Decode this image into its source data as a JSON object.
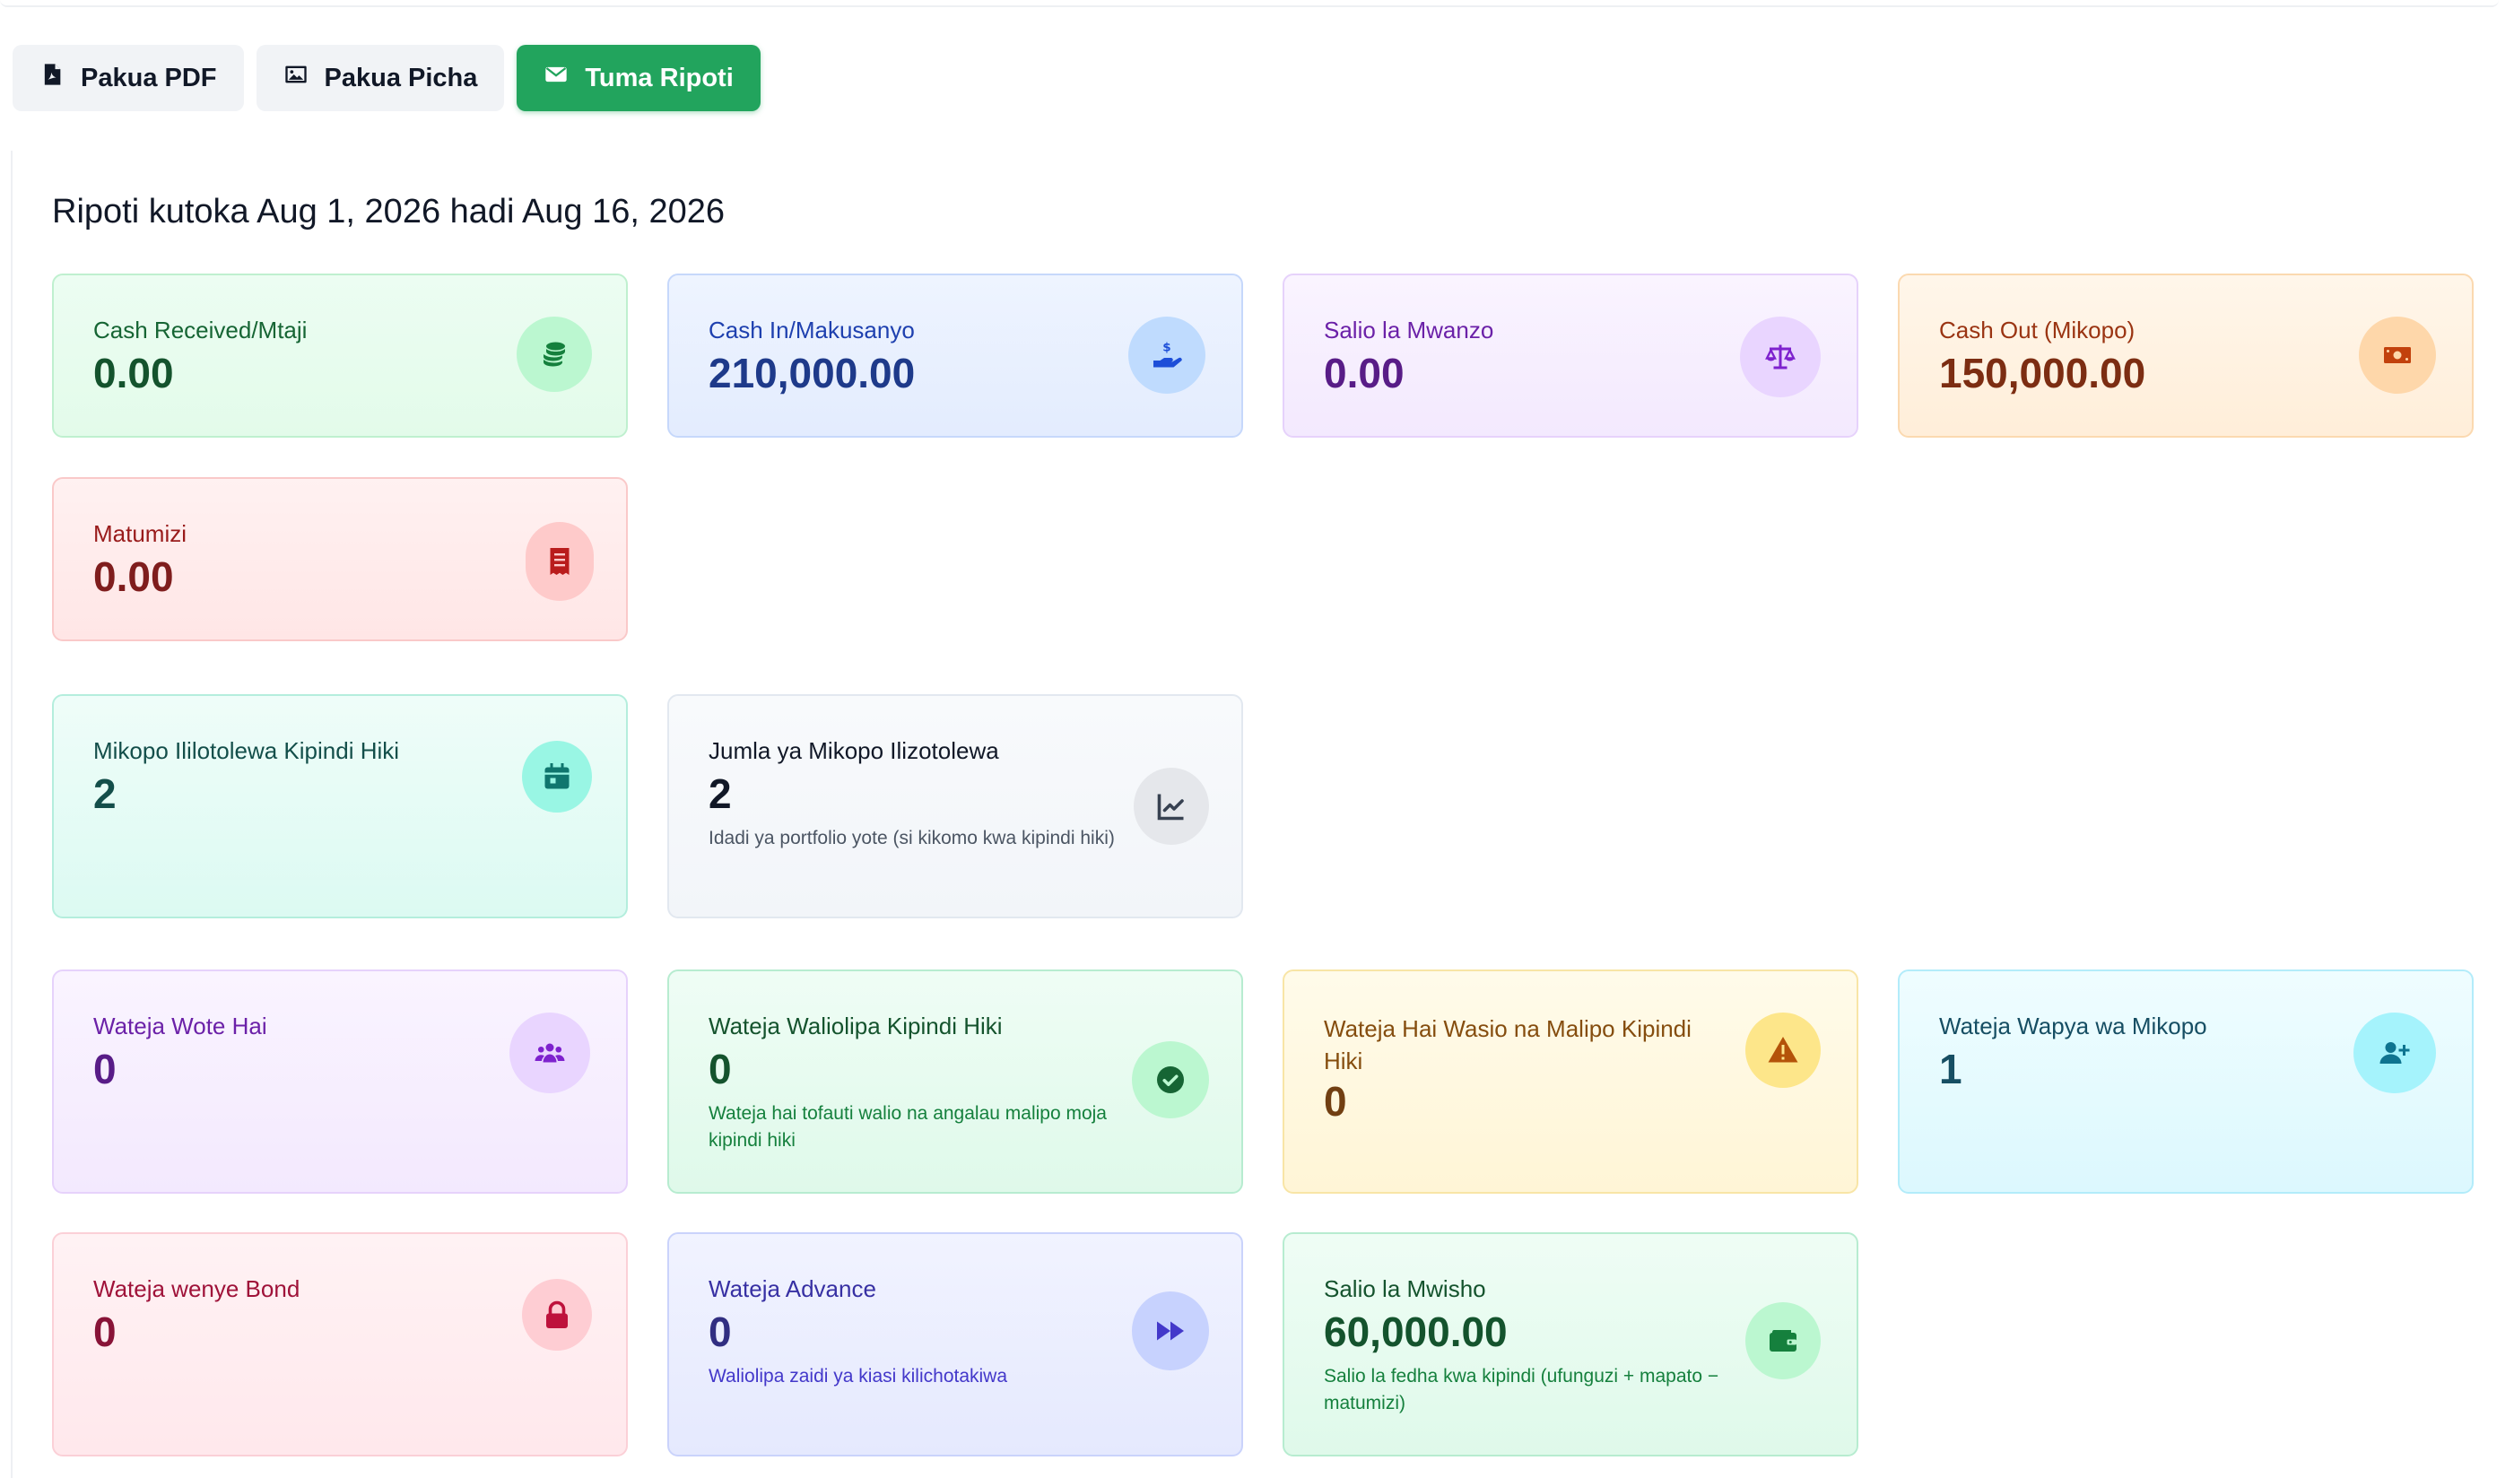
{
  "toolbar": {
    "pdf_label": "Pakua PDF",
    "image_label": "Pakua Picha",
    "send_label": "Tuma Ripoti"
  },
  "report": {
    "title": "Ripoti kutoka Aug 1, 2026 hadi Aug 16, 2026"
  },
  "cards": {
    "cash_received": {
      "label": "Cash Received/Mtaji",
      "value": "0.00",
      "icon": "coins-icon"
    },
    "cash_in": {
      "label": "Cash In/Makusanyo",
      "value": "210,000.00",
      "icon": "hand-dollar-icon"
    },
    "opening_balance": {
      "label": "Salio la Mwanzo",
      "value": "0.00",
      "icon": "scale-icon"
    },
    "cash_out": {
      "label": "Cash Out (Mikopo)",
      "value": "150,000.00",
      "icon": "money-bill-icon"
    },
    "expenses": {
      "label": "Matumizi",
      "value": "0.00",
      "icon": "receipt-icon"
    },
    "loans_period": {
      "label": "Mikopo Ililotolewa Kipindi Hiki",
      "value": "2",
      "icon": "calendar-icon"
    },
    "loans_total": {
      "label": "Jumla ya Mikopo Ilizotolewa",
      "value": "2",
      "sub": "Idadi ya portfolio yote (si kikomo kwa kipindi hiki)",
      "icon": "chart-line-icon"
    },
    "active_clients": {
      "label": "Wateja Wote Hai",
      "value": "0",
      "icon": "users-icon"
    },
    "paid_clients": {
      "label": "Wateja Waliolipa Kipindi Hiki",
      "value": "0",
      "sub": "Wateja hai tofauti walio na angalau malipo moja kipindi hiki",
      "icon": "check-circle-icon"
    },
    "unpaid_clients": {
      "label": "Wateja Hai Wasio na Malipo Kipindi Hiki",
      "value": "0",
      "icon": "warning-icon"
    },
    "new_clients": {
      "label": "Wateja Wapya wa Mikopo",
      "value": "1",
      "icon": "user-plus-icon"
    },
    "bond_clients": {
      "label": "Wateja wenye Bond",
      "value": "0",
      "icon": "lock-icon"
    },
    "advance_clients": {
      "label": "Wateja Advance",
      "value": "0",
      "sub": "Waliolipa zaidi ya kiasi kilichotakiwa",
      "icon": "fast-forward-icon"
    },
    "closing_balance": {
      "label": "Salio la Mwisho",
      "value": "60,000.00",
      "sub": "Salio la fedha kwa kipindi (ufunguzi + mapato − matumizi)",
      "icon": "wallet-icon"
    }
  },
  "colors": {
    "accent_green": "#22a45d",
    "blue_value": "#1e3a8a",
    "green_value": "#14532d",
    "purple_value": "#581c87",
    "orange_value": "#7c2d12",
    "red_value": "#7f1d1d"
  }
}
